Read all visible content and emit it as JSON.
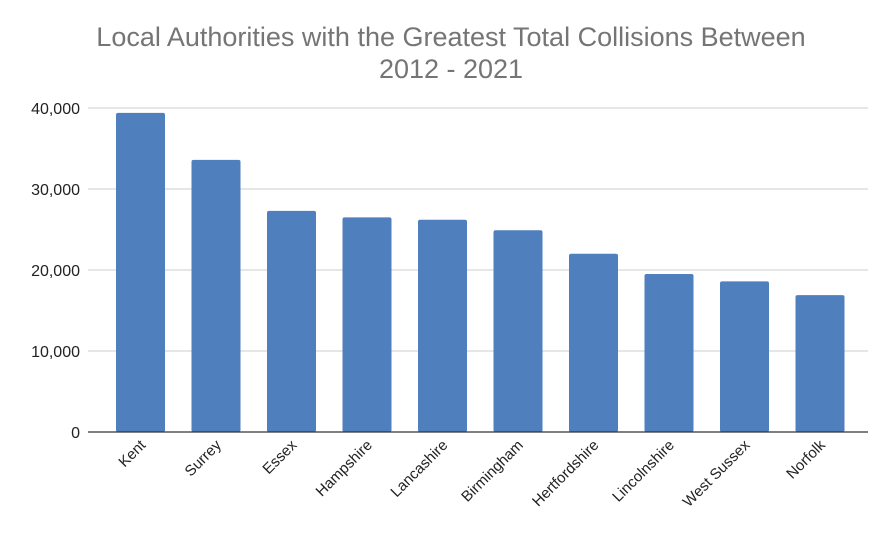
{
  "chart_data": {
    "type": "bar",
    "title": "Local Authorities with the Greatest Total Collisions Between 2012 - 2021",
    "title_lines": [
      "Local Authorities with the Greatest Total Collisions Between",
      "2012 - 2021"
    ],
    "xlabel": "",
    "ylabel": "",
    "categories": [
      "Kent",
      "Surrey",
      "Essex",
      "Hampshire",
      "Lancashire",
      "Birmingham",
      "Hertfordshire",
      "Lincolnshire",
      "West Sussex",
      "Norfolk"
    ],
    "values": [
      39400,
      33600,
      27300,
      26500,
      26200,
      24900,
      22000,
      19500,
      18600,
      16900
    ],
    "ylim": [
      0,
      40000
    ],
    "yticks": [
      0,
      10000,
      20000,
      30000,
      40000
    ],
    "ytick_labels": [
      "0",
      "10,000",
      "20,000",
      "30,000",
      "40,000"
    ],
    "grid": true,
    "legend": "none",
    "colors": {
      "bar": "#4f7fbd",
      "title": "#757575",
      "grid": "#cccccc",
      "axis": "#333333"
    }
  }
}
